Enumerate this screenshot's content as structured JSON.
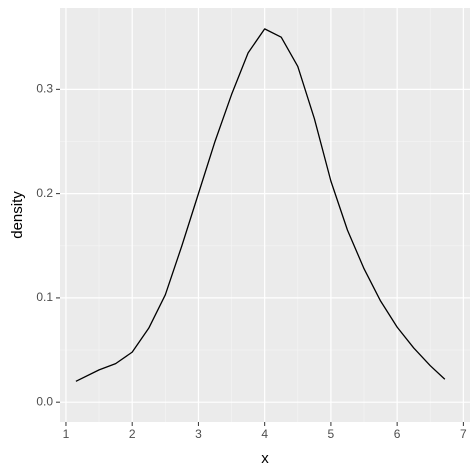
{
  "chart_data": {
    "type": "line",
    "x_label": "x",
    "y_label": "density",
    "x": [
      1.15,
      1.5,
      1.75,
      2.0,
      2.25,
      2.5,
      2.75,
      3.0,
      3.25,
      3.5,
      3.75,
      4.0,
      4.25,
      4.5,
      4.75,
      5.0,
      5.25,
      5.5,
      5.75,
      6.0,
      6.25,
      6.5,
      6.72
    ],
    "series": [
      {
        "color": "#000000",
        "values": [
          0.02,
          0.031,
          0.037,
          0.048,
          0.071,
          0.103,
          0.15,
          0.2,
          0.25,
          0.295,
          0.335,
          0.358,
          0.35,
          0.322,
          0.272,
          0.212,
          0.165,
          0.128,
          0.097,
          0.072,
          0.052,
          0.035,
          0.022
        ]
      }
    ],
    "xlim": [
      0.91,
      7.1
    ],
    "ylim": [
      -0.019,
      0.378
    ],
    "xticks": [
      1,
      2,
      3,
      4,
      5,
      6,
      7
    ],
    "yticks": [
      {
        "value": 0,
        "label": "0.0"
      },
      {
        "value": 0.1,
        "label": "0.1"
      },
      {
        "value": 0.2,
        "label": "0.2"
      },
      {
        "value": 0.3,
        "label": "0.3"
      }
    ],
    "grid": true
  }
}
